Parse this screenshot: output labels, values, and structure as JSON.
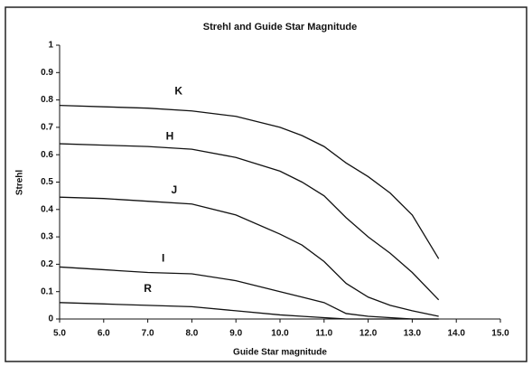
{
  "chart_data": {
    "type": "line",
    "title": "Strehl and Guide Star Magnitude",
    "x_label": "Guide Star magnitude",
    "y_label": "Strehl",
    "x": [
      5,
      6,
      7,
      8,
      9,
      10,
      10.5,
      11,
      11.5,
      12,
      12.5,
      13,
      13.6
    ],
    "series": [
      {
        "name": "K",
        "color": "#111111",
        "values": [
          0.78,
          0.775,
          0.77,
          0.76,
          0.74,
          0.7,
          0.67,
          0.63,
          0.57,
          0.52,
          0.46,
          0.38,
          0.22
        ]
      },
      {
        "name": "H",
        "color": "#111111",
        "values": [
          0.64,
          0.635,
          0.63,
          0.62,
          0.59,
          0.54,
          0.5,
          0.45,
          0.37,
          0.3,
          0.24,
          0.17,
          0.07
        ]
      },
      {
        "name": "J",
        "color": "#111111",
        "values": [
          0.445,
          0.44,
          0.43,
          0.42,
          0.38,
          0.31,
          0.27,
          0.21,
          0.13,
          0.08,
          0.05,
          0.03,
          0.01
        ]
      },
      {
        "name": "I",
        "color": "#111111",
        "values": [
          0.19,
          0.18,
          0.17,
          0.165,
          0.14,
          0.1,
          0.08,
          0.06,
          0.02,
          0.01,
          0.005,
          0,
          0
        ]
      },
      {
        "name": "R",
        "color": "#111111",
        "values": [
          0.06,
          0.055,
          0.05,
          0.045,
          0.03,
          0.015,
          0.01,
          0.005,
          0,
          0,
          0,
          0,
          0
        ]
      }
    ],
    "xlim": [
      5,
      15
    ],
    "xticks": [
      {
        "value": 5,
        "label": "5.0"
      },
      {
        "value": 6,
        "label": "6.0"
      },
      {
        "value": 7,
        "label": "7.0"
      },
      {
        "value": 8,
        "label": "8.0"
      },
      {
        "value": 9,
        "label": "9.0"
      },
      {
        "value": 10,
        "label": "10.0"
      },
      {
        "value": 11,
        "label": "11.0"
      },
      {
        "value": 12,
        "label": "12.0"
      },
      {
        "value": 13,
        "label": "13.0"
      },
      {
        "value": 14,
        "label": "14.0"
      },
      {
        "value": 15,
        "label": "15.0"
      }
    ],
    "ylim": [
      0,
      1
    ],
    "yticks": [
      0,
      0.1,
      0.2,
      0.3,
      0.4,
      0.5,
      0.6,
      0.7,
      0.8,
      0.9,
      1
    ],
    "grid": false
  }
}
